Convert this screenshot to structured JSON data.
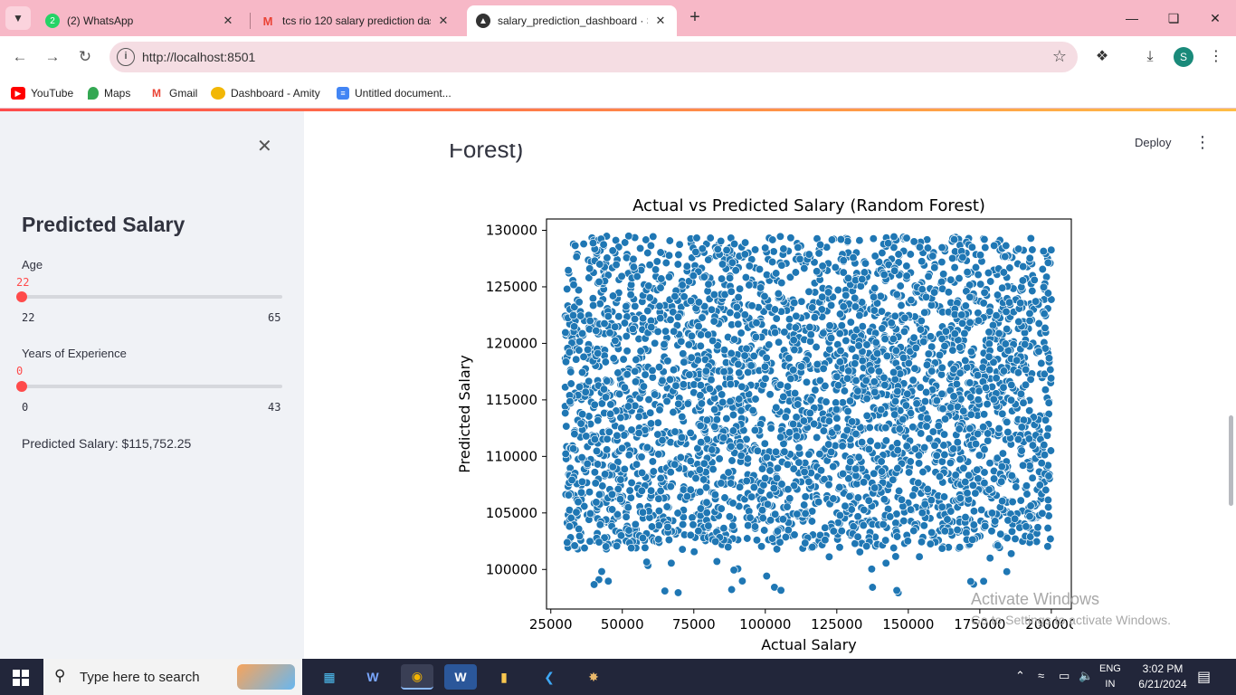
{
  "browser": {
    "tabs": [
      {
        "title": "(2) WhatsApp",
        "icon": "whatsapp-icon",
        "color": "#25d366"
      },
      {
        "title": "tcs rio 120 salary prediction das",
        "icon": "gmail-icon",
        "color": "#ea4335"
      },
      {
        "title": "salary_prediction_dashboard · S",
        "icon": "streamlit-icon",
        "color": "#333333"
      }
    ],
    "url": "http://localhost:8501",
    "profile_initial": "S",
    "bookmarks": [
      {
        "label": "YouTube",
        "icon": "youtube-icon"
      },
      {
        "label": "Maps",
        "icon": "maps-icon"
      },
      {
        "label": "Gmail",
        "icon": "gmail-icon"
      },
      {
        "label": "Dashboard - Amity",
        "icon": "amity-icon"
      },
      {
        "label": "Untitled document...",
        "icon": "docs-icon"
      }
    ]
  },
  "sidebar": {
    "title": "Predicted Salary",
    "age": {
      "label": "Age",
      "value": "22",
      "min": "22",
      "max": "65",
      "level": 0
    },
    "experience": {
      "label": "Years of Experience",
      "value": "0",
      "min": "0",
      "max": "43",
      "level": 0
    },
    "result": "Predicted Salary: $115,752.25"
  },
  "main": {
    "deploy_label": "Deploy",
    "truncated_heading": "Forest)"
  },
  "chart_data": {
    "type": "scatter",
    "title": "Actual vs Predicted Salary (Random Forest)",
    "xlabel": "Actual Salary",
    "ylabel": "Predicted Salary",
    "xlim": [
      23500,
      207000
    ],
    "ylim": [
      96500,
      131000
    ],
    "xticks": [
      25000,
      50000,
      75000,
      100000,
      125000,
      150000,
      175000,
      200000
    ],
    "yticks": [
      100000,
      105000,
      110000,
      115000,
      120000,
      125000,
      130000
    ],
    "marker_color": "#1f77b4",
    "grid": false,
    "legend": "none",
    "distribution": {
      "x_range": [
        30000,
        200000
      ],
      "dense_y_range": [
        104000,
        124000
      ],
      "sparse_upper_y_range": [
        124000,
        129500
      ],
      "sparse_lower_y_range": [
        97800,
        104000
      ]
    }
  },
  "watermark": {
    "line1": "Activate Windows",
    "line2": "Go to Settings to activate Windows."
  },
  "taskbar": {
    "search_placeholder": "Type here to search",
    "lang_line1": "ENG",
    "lang_line2": "IN",
    "time": "3:02 PM",
    "date": "6/21/2024"
  }
}
